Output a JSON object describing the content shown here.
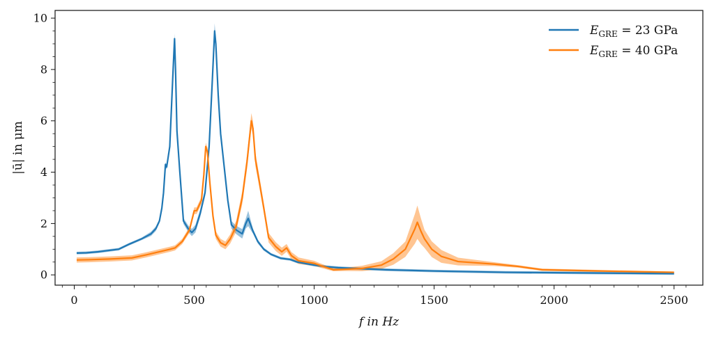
{
  "chart_data": {
    "type": "line",
    "title": "",
    "xlabel": "f  in  Hz",
    "ylabel": "|ū| in μm",
    "xlim": [
      -80,
      2620
    ],
    "ylim": [
      -0.4,
      10.3
    ],
    "xticks": [
      0,
      500,
      1000,
      1500,
      2000,
      2500
    ],
    "yticks": [
      0,
      2,
      4,
      6,
      8,
      10
    ],
    "grid": false,
    "legend_position": "top-right",
    "series": [
      {
        "name": "E_GRE = 23 GPa",
        "label_main": "E",
        "label_sub": "GRE",
        "label_rest": " = 23 GPa",
        "color": "#1f77b4",
        "band_color": "#1f77b4",
        "points": [
          [
            10,
            0.85
          ],
          [
            50,
            0.86
          ],
          [
            100,
            0.9
          ],
          [
            185,
            1.0
          ],
          [
            230,
            1.2
          ],
          [
            280,
            1.4
          ],
          [
            320,
            1.6
          ],
          [
            340,
            1.8
          ],
          [
            355,
            2.1
          ],
          [
            365,
            2.6
          ],
          [
            372,
            3.2
          ],
          [
            380,
            4.3
          ],
          [
            385,
            4.2
          ],
          [
            390,
            4.5
          ],
          [
            398,
            5.0
          ],
          [
            405,
            6.5
          ],
          [
            412,
            8.0
          ],
          [
            418,
            9.2
          ],
          [
            422,
            8.0
          ],
          [
            428,
            5.6
          ],
          [
            440,
            4.0
          ],
          [
            455,
            2.1
          ],
          [
            475,
            1.8
          ],
          [
            490,
            1.65
          ],
          [
            505,
            1.8
          ],
          [
            525,
            2.4
          ],
          [
            545,
            3.2
          ],
          [
            562,
            5.0
          ],
          [
            575,
            7.5
          ],
          [
            585,
            9.5
          ],
          [
            590,
            9.0
          ],
          [
            600,
            7.0
          ],
          [
            610,
            5.5
          ],
          [
            625,
            4.2
          ],
          [
            640,
            2.9
          ],
          [
            655,
            1.95
          ],
          [
            675,
            1.75
          ],
          [
            700,
            1.6
          ],
          [
            715,
            2.0
          ],
          [
            725,
            2.2
          ],
          [
            745,
            1.7
          ],
          [
            765,
            1.3
          ],
          [
            790,
            1.0
          ],
          [
            820,
            0.8
          ],
          [
            860,
            0.65
          ],
          [
            900,
            0.6
          ],
          [
            930,
            0.5
          ],
          [
            1000,
            0.38
          ],
          [
            1050,
            0.32
          ],
          [
            1100,
            0.28
          ],
          [
            1200,
            0.24
          ],
          [
            1300,
            0.2
          ],
          [
            1500,
            0.15
          ],
          [
            1800,
            0.1
          ],
          [
            2200,
            0.07
          ],
          [
            2500,
            0.05
          ]
        ],
        "band_halfwidth": [
          [
            300,
            0.05
          ],
          [
            330,
            0.1
          ],
          [
            350,
            0.08
          ],
          [
            410,
            0.1
          ],
          [
            418,
            0.2
          ],
          [
            440,
            0.1
          ],
          [
            500,
            0.15
          ],
          [
            580,
            0.15
          ],
          [
            585,
            0.3
          ],
          [
            600,
            0.1
          ],
          [
            720,
            0.2
          ],
          [
            725,
            0.3
          ],
          [
            740,
            0.1
          ],
          [
            800,
            0.05
          ]
        ]
      },
      {
        "name": "E_GRE = 40 GPa",
        "label_main": "E",
        "label_sub": "GRE",
        "label_rest": " = 40 GPa",
        "color": "#ff7f0e",
        "band_color": "#ff7f0e",
        "points": [
          [
            10,
            0.58
          ],
          [
            60,
            0.59
          ],
          [
            150,
            0.62
          ],
          [
            240,
            0.66
          ],
          [
            300,
            0.78
          ],
          [
            400,
            1.0
          ],
          [
            420,
            1.05
          ],
          [
            450,
            1.3
          ],
          [
            480,
            1.75
          ],
          [
            500,
            2.5
          ],
          [
            510,
            2.5
          ],
          [
            530,
            2.9
          ],
          [
            540,
            3.9
          ],
          [
            548,
            5.0
          ],
          [
            555,
            4.8
          ],
          [
            565,
            3.6
          ],
          [
            578,
            2.3
          ],
          [
            590,
            1.55
          ],
          [
            610,
            1.25
          ],
          [
            630,
            1.15
          ],
          [
            650,
            1.4
          ],
          [
            675,
            1.9
          ],
          [
            700,
            3.0
          ],
          [
            720,
            4.4
          ],
          [
            738,
            6.0
          ],
          [
            745,
            5.7
          ],
          [
            755,
            4.5
          ],
          [
            770,
            3.7
          ],
          [
            790,
            2.6
          ],
          [
            810,
            1.45
          ],
          [
            840,
            1.1
          ],
          [
            865,
            0.9
          ],
          [
            885,
            1.05
          ],
          [
            905,
            0.75
          ],
          [
            935,
            0.55
          ],
          [
            1000,
            0.45
          ],
          [
            1030,
            0.35
          ],
          [
            1080,
            0.2
          ],
          [
            1130,
            0.22
          ],
          [
            1200,
            0.25
          ],
          [
            1280,
            0.38
          ],
          [
            1330,
            0.62
          ],
          [
            1380,
            1.0
          ],
          [
            1420,
            1.8
          ],
          [
            1430,
            2.05
          ],
          [
            1445,
            1.7
          ],
          [
            1460,
            1.4
          ],
          [
            1490,
            1.0
          ],
          [
            1530,
            0.72
          ],
          [
            1600,
            0.52
          ],
          [
            1750,
            0.42
          ],
          [
            1850,
            0.33
          ],
          [
            1950,
            0.2
          ],
          [
            2200,
            0.15
          ],
          [
            2500,
            0.1
          ]
        ],
        "band_halfwidth": [
          [
            450,
            0.1
          ],
          [
            548,
            0.15
          ],
          [
            590,
            0.15
          ],
          [
            630,
            0.15
          ],
          [
            738,
            0.3
          ],
          [
            780,
            0.2
          ],
          [
            1100,
            0.05
          ],
          [
            1280,
            0.15
          ],
          [
            1380,
            0.3
          ],
          [
            1430,
            0.65
          ],
          [
            1460,
            0.35
          ],
          [
            1600,
            0.15
          ],
          [
            1800,
            0.05
          ],
          [
            2500,
            0.03
          ]
        ]
      }
    ]
  }
}
